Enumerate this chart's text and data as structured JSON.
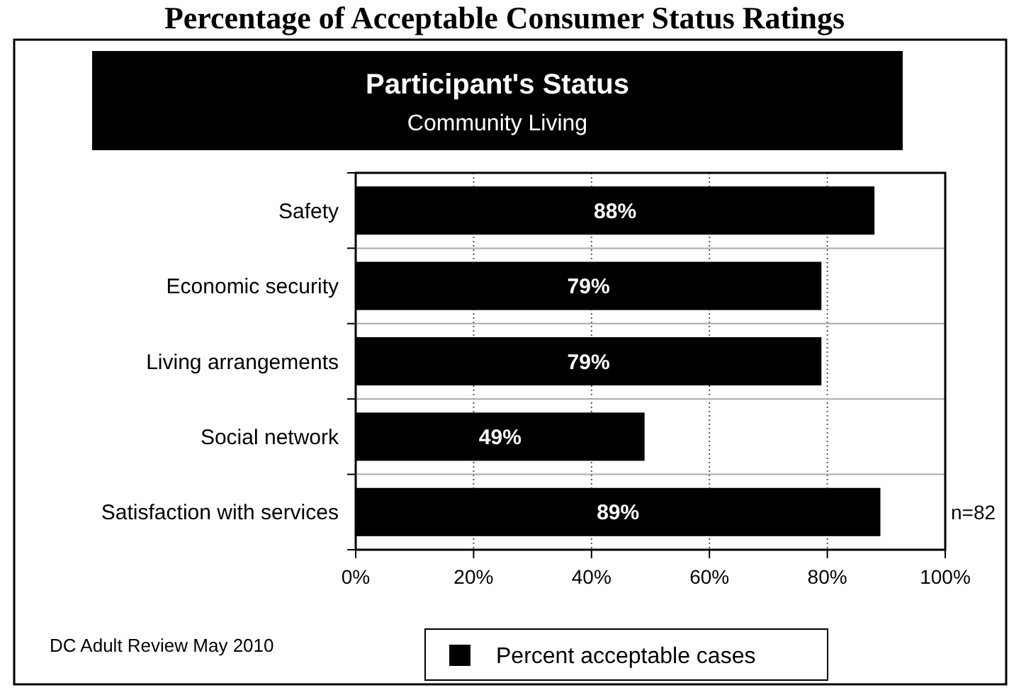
{
  "chart_data": {
    "type": "bar",
    "orientation": "horizontal",
    "title": "Percentage of Acceptable Consumer Status Ratings",
    "subtitle": "Participant's Status",
    "categories": [
      "Safety",
      "Economic security",
      "Living arrangements",
      "Social network",
      "Satisfaction with services"
    ],
    "series": [
      {
        "name": "Percent acceptable cases",
        "color": "#000000",
        "values": [
          88,
          79,
          79,
          49,
          89
        ],
        "value_labels": [
          "88%",
          "79%",
          "79%",
          "49%",
          "89%"
        ]
      }
    ],
    "xlim": [
      0,
      100
    ],
    "xticks": [
      {
        "value": 0,
        "label": "0%"
      },
      {
        "value": 20,
        "label": "20%"
      },
      {
        "value": 40,
        "label": "40%"
      },
      {
        "value": 60,
        "label": "60%"
      },
      {
        "value": 80,
        "label": "80%"
      },
      {
        "value": 100,
        "label": "100%"
      }
    ],
    "grid": true,
    "legend": "bottom",
    "annotations": [
      "Community Living",
      "n=82",
      "DC Adult Review May 2010"
    ]
  }
}
